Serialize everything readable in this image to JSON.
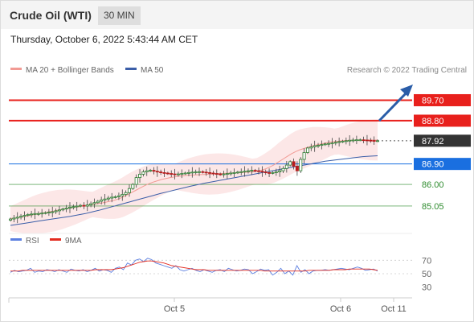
{
  "header": {
    "instrument": "Crude Oil (WTI)",
    "interval": "30 MIN"
  },
  "timestamp": "Thursday, October 6, 2022 5:43:44 AM CET",
  "legend": {
    "ma20_bb": "MA 20 + Bollinger Bands",
    "ma50": "MA 50",
    "credit": "Research © 2022 Trading Central"
  },
  "colors": {
    "resistance": "#e8201c",
    "support_box": "#1a6fe0",
    "support_line": "#2e8b2e",
    "ma20": "#f29a94",
    "ma50": "#3b5ea8",
    "bollinger_fill": "#fbe3e3",
    "last_price_box": "#333333",
    "candle_up": "#2e7d32",
    "candle_down": "#b71c1c",
    "arrow": "#2a5da8",
    "rsi": "#5b7fe0",
    "rsi_ma": "#e32b1f"
  },
  "chart_data": [
    {
      "type": "candlestick",
      "title": "Crude Oil (WTI)",
      "interval": "30 MIN",
      "x_ticks": [
        "Oct 5",
        "Oct 6",
        "Oct 11"
      ],
      "ylim": [
        84.2,
        90.0
      ],
      "levels": [
        {
          "value": 89.7,
          "label": "89.70",
          "kind": "resistance"
        },
        {
          "value": 88.8,
          "label": "88.80",
          "kind": "resistance"
        },
        {
          "value": 87.92,
          "label": "87.92",
          "kind": "last_price"
        },
        {
          "value": 86.9,
          "label": "86.90",
          "kind": "pivot"
        },
        {
          "value": 86.0,
          "label": "86.00",
          "kind": "support"
        },
        {
          "value": 85.05,
          "label": "85.05",
          "kind": "support"
        }
      ],
      "close": [
        84.48,
        84.52,
        84.56,
        84.6,
        84.64,
        84.68,
        84.7,
        84.72,
        84.72,
        84.74,
        84.76,
        84.78,
        84.8,
        84.84,
        84.88,
        84.92,
        84.96,
        85.0,
        85.02,
        85.05,
        85.08,
        85.05,
        85.1,
        85.15,
        85.2,
        85.26,
        85.32,
        85.36,
        85.4,
        85.44,
        85.46,
        85.5,
        85.56,
        85.64,
        85.82,
        86.0,
        86.3,
        86.45,
        86.55,
        86.6,
        86.62,
        86.58,
        86.55,
        86.52,
        86.5,
        86.48,
        86.46,
        86.44,
        86.46,
        86.48,
        86.5,
        86.52,
        86.54,
        86.55,
        86.56,
        86.54,
        86.52,
        86.5,
        86.48,
        86.46,
        86.44,
        86.46,
        86.48,
        86.5,
        86.52,
        86.54,
        86.56,
        86.58,
        86.6,
        86.62,
        86.6,
        86.58,
        86.55,
        86.52,
        86.5,
        86.52,
        86.55,
        86.6,
        86.7,
        86.85,
        87.0,
        86.8,
        86.6,
        87.1,
        87.4,
        87.6,
        87.65,
        87.7,
        87.72,
        87.75,
        87.78,
        87.8,
        87.82,
        87.85,
        87.88,
        87.9,
        87.92,
        87.94,
        87.95,
        87.96,
        87.96,
        87.95,
        87.94,
        87.93,
        87.92,
        87.92
      ],
      "ma20": [
        84.5,
        84.52,
        84.55,
        84.58,
        84.62,
        84.66,
        84.7,
        84.73,
        84.76,
        84.8,
        84.83,
        84.87,
        84.9,
        84.94,
        84.97,
        85.0,
        85.03,
        85.06,
        85.09,
        85.12,
        85.15,
        85.18,
        85.22,
        85.26,
        85.3,
        85.36,
        85.44,
        85.54,
        85.64,
        85.74,
        85.84,
        85.94,
        86.03,
        86.1,
        86.16,
        86.22,
        86.26,
        86.3,
        86.33,
        86.36,
        86.38,
        86.4,
        86.41,
        86.42,
        86.43,
        86.44,
        86.45,
        86.46,
        86.47,
        86.48,
        86.49,
        86.5,
        86.51,
        86.52,
        86.53,
        86.54,
        86.55,
        86.58,
        86.62,
        86.68,
        86.76,
        86.86,
        86.98,
        87.1,
        87.22,
        87.34,
        87.44,
        87.52,
        87.58,
        87.64,
        87.7,
        87.74,
        87.78,
        87.82,
        87.86,
        87.88,
        87.9,
        87.92,
        87.93,
        87.94,
        87.94,
        87.95,
        87.95,
        87.95,
        87.95,
        87.95
      ],
      "ma50": [
        84.2,
        84.25,
        84.3,
        84.35,
        84.4,
        84.45,
        84.5,
        84.55,
        84.6,
        84.66,
        84.72,
        84.8,
        84.88,
        84.97,
        85.06,
        85.15,
        85.24,
        85.33,
        85.42,
        85.51,
        85.6,
        85.68,
        85.76,
        85.84,
        85.92,
        85.99,
        86.06,
        86.12,
        86.18,
        86.24,
        86.3,
        86.36,
        86.42,
        86.48,
        86.54,
        86.6,
        86.66,
        86.72,
        86.78,
        86.84,
        86.9,
        86.96,
        87.02,
        87.06,
        87.1,
        87.14,
        87.18,
        87.22,
        87.24,
        87.26
      ]
    },
    {
      "type": "line",
      "title": "RSI",
      "series": [
        {
          "name": "RSI",
          "values": [
            52,
            55,
            53,
            54,
            55,
            58,
            52,
            54,
            53,
            56,
            55,
            53,
            56,
            54,
            52,
            57,
            55,
            54,
            56,
            53,
            55,
            58,
            54,
            56,
            55,
            52,
            58,
            60,
            56,
            66,
            63,
            70,
            72,
            68,
            73,
            71,
            66,
            64,
            62,
            60,
            58,
            62,
            56,
            54,
            56,
            58,
            55,
            53,
            56,
            54,
            52,
            55,
            56,
            53,
            58,
            56,
            54,
            55,
            57,
            56,
            50,
            53,
            57,
            55,
            56,
            48,
            52,
            58,
            50,
            54,
            48,
            62,
            52,
            56,
            50,
            54,
            55,
            55,
            56,
            55,
            56,
            57,
            58,
            57,
            56,
            58,
            60,
            58,
            55,
            56,
            57,
            54
          ]
        },
        {
          "name": "9MA",
          "values": [
            54,
            54,
            54,
            55,
            55,
            55,
            55,
            55,
            55,
            55,
            55,
            55,
            55,
            55,
            55,
            55,
            55,
            55,
            55,
            55,
            55,
            56,
            56,
            56,
            56,
            56,
            57,
            58,
            59,
            61,
            63,
            65,
            67,
            68,
            69,
            69,
            68,
            67,
            66,
            64,
            62,
            61,
            60,
            59,
            58,
            57,
            56,
            56,
            56,
            55,
            55,
            55,
            55,
            55,
            55,
            55,
            55,
            55,
            55,
            55,
            55,
            55,
            55,
            54,
            54,
            54,
            54,
            54,
            54,
            54,
            54,
            54,
            54,
            54,
            55,
            55,
            55,
            55,
            55,
            55,
            56,
            56,
            56,
            56,
            57,
            57,
            57,
            57,
            57,
            57,
            56,
            55
          ]
        }
      ],
      "y_ticks": [
        "70",
        "50",
        "30"
      ],
      "ylim": [
        20,
        80
      ],
      "x_ticks": [
        "Oct 5",
        "Oct 6",
        "Oct 11"
      ]
    }
  ]
}
